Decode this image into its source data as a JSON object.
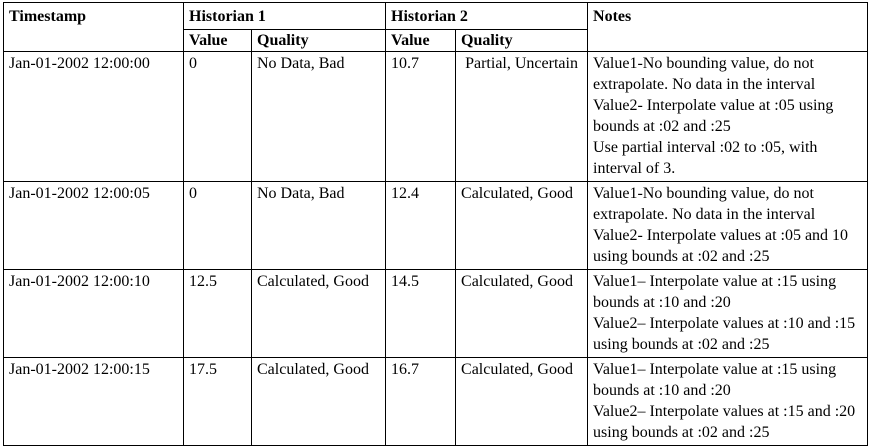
{
  "headers": {
    "timestamp": "Timestamp",
    "historian1": "Historian 1",
    "historian2": "Historian 2",
    "notes": "Notes",
    "value": "Value",
    "quality": "Quality"
  },
  "rows": [
    {
      "timestamp": "Jan-01-2002 12:00:00",
      "h1_value": "0",
      "h1_quality": "No Data, Bad",
      "h2_value": "10.7",
      "h2_quality": "Partial, Uncertain",
      "notes": [
        "Value1-No bounding value, do not extrapolate. No data in the interval",
        "Value2- Interpolate value at :05 using bounds at :02 and :25",
        "Use partial interval  :02 to :05, with interval of 3."
      ]
    },
    {
      "timestamp": "Jan-01-2002 12:00:05",
      "h1_value": "0",
      "h1_quality": "No Data, Bad",
      "h2_value": "12.4",
      "h2_quality": "Calculated, Good",
      "notes": [
        "Value1-No bounding value, do not extrapolate. No data in the interval",
        "Value2- Interpolate values at :05 and 10 using bounds at :02 and :25"
      ]
    },
    {
      "timestamp": "Jan-01-2002 12:00:10",
      "h1_value": "12.5",
      "h1_quality": "Calculated, Good",
      "h2_value": "14.5",
      "h2_quality": "Calculated, Good",
      "notes": [
        "Value1– Interpolate value at :15 using bounds at :10 and :20",
        "Value2– Interpolate values at :10 and :15 using bounds at :02 and :25"
      ]
    },
    {
      "timestamp": "Jan-01-2002 12:00:15",
      "h1_value": "17.5",
      "h1_quality": "Calculated, Good",
      "h2_value": "16.7",
      "h2_quality": "Calculated, Good",
      "notes": [
        "Value1– Interpolate value at :15 using bounds at :10 and :20",
        "Value2– Interpolate values at :15 and :20 using bounds at :02 and :25"
      ]
    }
  ]
}
